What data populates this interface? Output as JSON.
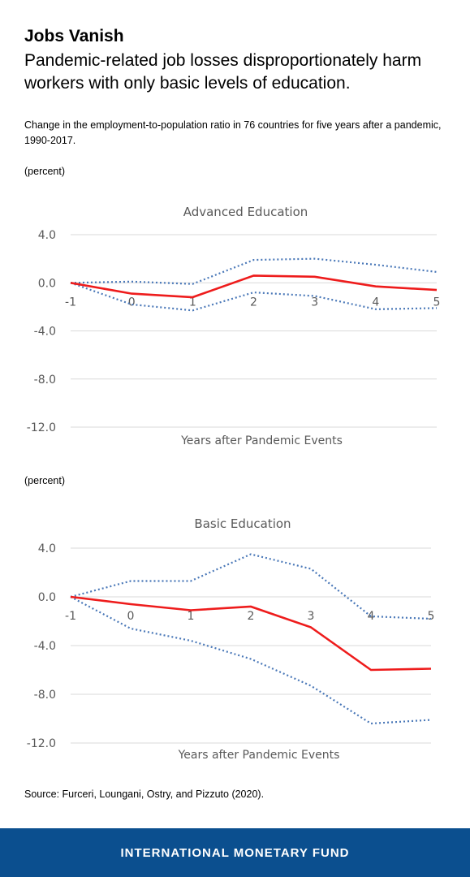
{
  "header": {
    "title": "Jobs Vanish",
    "subtitle": "Pandemic-related job losses disproportionately harm workers with only basic levels of education.",
    "description": "Change in the employment-to-population ratio in 76 countries for five years after a pandemic, 1990-2017."
  },
  "colors": {
    "main_line": "#ee1c1c",
    "band_line": "#4a78b8",
    "grid": "#d9d9d9",
    "footer_bg": "#0b4f8f"
  },
  "chart_data": [
    {
      "type": "line",
      "title": "Advanced Education",
      "unit": "(percent)",
      "xlabel": "Years after Pandemic Events",
      "x": [
        -1,
        0,
        1,
        2,
        3,
        4,
        5
      ],
      "x_tick_labels": [
        "-1",
        "0",
        "1",
        "2",
        "3",
        "4",
        "5"
      ],
      "y_ticks": [
        4,
        0,
        -4,
        -8,
        -12
      ],
      "y_tick_labels": [
        "4.0",
        "0.0",
        "-4.0",
        "-8.0",
        "-12.0"
      ],
      "ylim": [
        -12,
        4
      ],
      "grid": true,
      "series": [
        {
          "style": "solid",
          "values": [
            0,
            -0.9,
            -1.2,
            0.6,
            0.5,
            -0.3,
            -0.6
          ]
        },
        {
          "style": "dotted",
          "values": [
            0,
            0.1,
            -0.1,
            1.9,
            2.0,
            1.5,
            0.9
          ]
        },
        {
          "style": "dotted",
          "values": [
            0,
            -1.8,
            -2.3,
            -0.8,
            -1.1,
            -2.2,
            -2.1
          ]
        }
      ]
    },
    {
      "type": "line",
      "title": "Basic Education",
      "unit": "(percent)",
      "xlabel": "Years after Pandemic Events",
      "x": [
        -1,
        0,
        1,
        2,
        3,
        4,
        5
      ],
      "x_tick_labels": [
        "-1",
        "0",
        "1",
        "2",
        "3",
        "4",
        "5"
      ],
      "y_ticks": [
        4,
        0,
        -4,
        -8,
        -12
      ],
      "y_tick_labels": [
        "4.0",
        "0.0",
        "-4.0",
        "-8.0",
        "-12.0"
      ],
      "ylim": [
        -12,
        4
      ],
      "grid": true,
      "series": [
        {
          "style": "solid",
          "values": [
            0,
            -0.6,
            -1.1,
            -0.8,
            -2.5,
            -6.0,
            -5.9
          ]
        },
        {
          "style": "dotted",
          "values": [
            0,
            1.3,
            1.3,
            3.5,
            2.3,
            -1.6,
            -1.8
          ]
        },
        {
          "style": "dotted",
          "values": [
            0,
            -2.6,
            -3.6,
            -5.1,
            -7.3,
            -10.4,
            -10.1
          ]
        }
      ]
    }
  ],
  "source": "Source: Furceri, Loungani, Ostry, and Pizzuto (2020).",
  "footer": {
    "org": "INTERNATIONAL MONETARY FUND"
  }
}
